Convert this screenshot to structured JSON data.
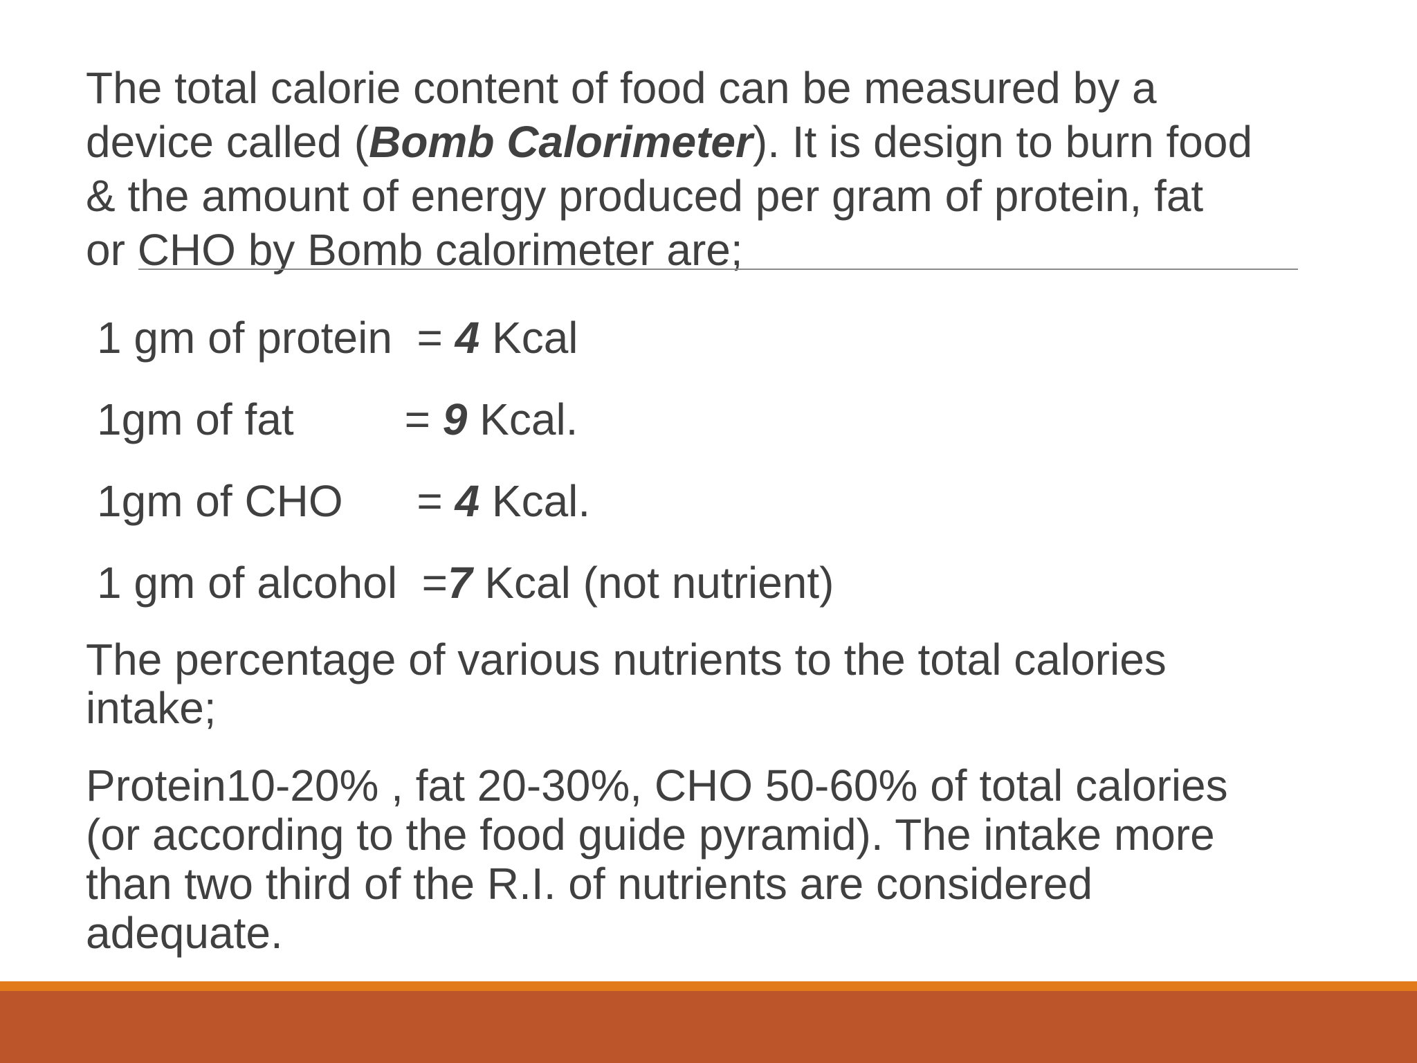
{
  "intro": {
    "line1": "The total calorie content of food can be measured by a",
    "line2_before": "device called (",
    "line2_bold": "Bomb Calorimeter",
    "line2_after": "). It is design to burn food",
    "line3": "& the amount of energy produced per gram of protein, fat",
    "line4_prefix": "or ",
    "line4_rest": "CHO by Bomb calorimeter are;"
  },
  "energy_values": [
    {
      "label": "1 gm of protein  = ",
      "value": "4",
      "unit": " Kcal"
    },
    {
      "label": "1gm of fat         = ",
      "value": "9",
      "unit": " Kcal."
    },
    {
      "label": "1gm of CHO      = ",
      "value": "4",
      "unit": " Kcal."
    },
    {
      "label": "1 gm of alcohol  =",
      "value": "7",
      "unit": " Kcal (not nutrient)"
    }
  ],
  "percentage_intro": {
    "line1": "The percentage of various nutrients to the total calories",
    "line2": "intake;"
  },
  "recommendation": {
    "line1": "Protein10-20% , fat 20-30%, CHO 50-60% of total calories",
    "line2": "(or according to the food guide pyramid). The intake more",
    "line3": "than two third of the R.I. of nutrients are considered",
    "line4": "adequate."
  },
  "colors": {
    "text": "#404040",
    "footer_accent": "#e07a1a",
    "footer_band": "#bd552b"
  }
}
